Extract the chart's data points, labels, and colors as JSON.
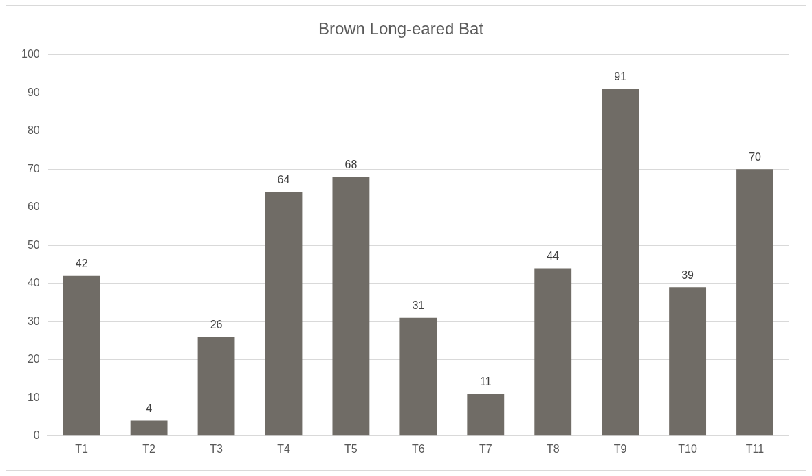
{
  "chart_data": {
    "type": "bar",
    "title": "Brown Long-eared Bat",
    "categories": [
      "T1",
      "T2",
      "T3",
      "T4",
      "T5",
      "T6",
      "T7",
      "T8",
      "T9",
      "T10",
      "T11"
    ],
    "values": [
      42,
      4,
      26,
      64,
      68,
      31,
      11,
      44,
      91,
      39,
      70
    ],
    "color": "#706c66",
    "ylim": [
      0,
      100
    ],
    "yticks": [
      0,
      10,
      20,
      30,
      40,
      50,
      60,
      70,
      80,
      90,
      100
    ],
    "grid": "y",
    "legend": false,
    "data_labels": true
  }
}
